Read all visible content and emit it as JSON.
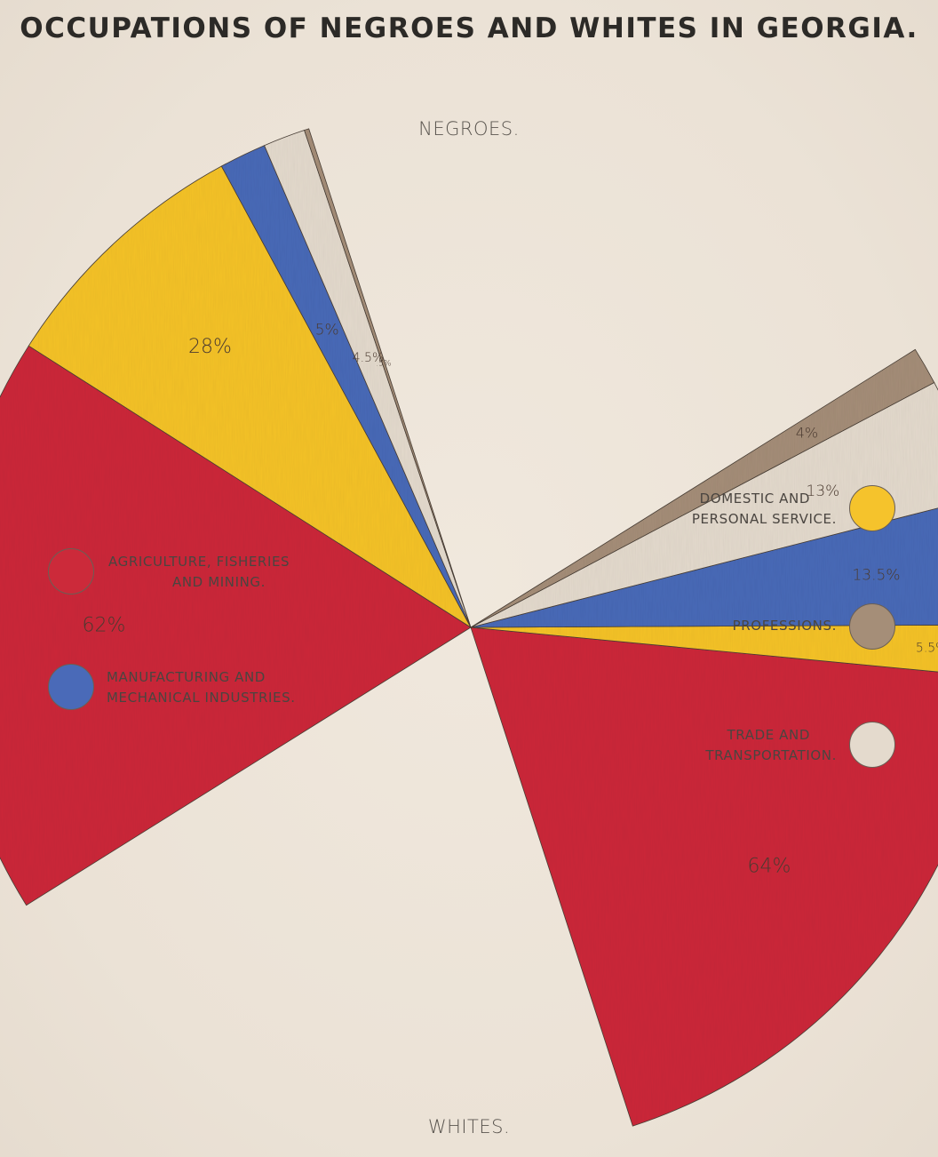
{
  "title": "OCCUPATIONS OF NEGROES AND WHITES IN GEORGIA.",
  "chart_data": {
    "type": "pie",
    "groups": [
      {
        "name": "NEGROES.",
        "slices": [
          {
            "category": "AGRICULTURE, FISHERIES AND MINING.",
            "label": "62%",
            "value": 62
          },
          {
            "category": "DOMESTIC AND PERSONAL SERVICE.",
            "label": "28%",
            "value": 28
          },
          {
            "category": "MANUFACTURING AND MECHANICAL INDUSTRIES.",
            "label": "5%",
            "value": 5
          },
          {
            "category": "TRADE AND TRANSPORTATION.",
            "label": "4.5%",
            "value": 4.5
          },
          {
            "category": "PROFESSIONS.",
            "label": ".5%",
            "value": 0.5
          }
        ]
      },
      {
        "name": "WHITES.",
        "slices": [
          {
            "category": "AGRICULTURE, FISHERIES AND MINING.",
            "label": "64%",
            "value": 64
          },
          {
            "category": "DOMESTIC AND PERSONAL SERVICE.",
            "label": "5.5%",
            "value": 5.5
          },
          {
            "category": "MANUFACTURING AND MECHANICAL INDUSTRIES.",
            "label": "13.5%",
            "value": 13.5
          },
          {
            "category": "TRADE AND TRANSPORTATION.",
            "label": "13%",
            "value": 13
          },
          {
            "category": "PROFESSIONS.",
            "label": "4%",
            "value": 4
          }
        ]
      }
    ],
    "legend": [
      {
        "lines": [
          "AGRICULTURE, FISHERIES",
          "AND MINING."
        ],
        "color": "#cc2a3a"
      },
      {
        "lines": [
          "MANUFACTURING AND",
          "MECHANICAL INDUSTRIES."
        ],
        "color": "#4a6ab8"
      },
      {
        "lines": [
          "DOMESTIC AND",
          "PERSONAL SERVICE."
        ],
        "color": "#f5c32c"
      },
      {
        "lines": [
          "PROFESSIONS."
        ],
        "color": "#a58e78"
      },
      {
        "lines": [
          "TRADE AND",
          "TRANSPORTATION."
        ],
        "color": "#e4dacd"
      }
    ]
  }
}
